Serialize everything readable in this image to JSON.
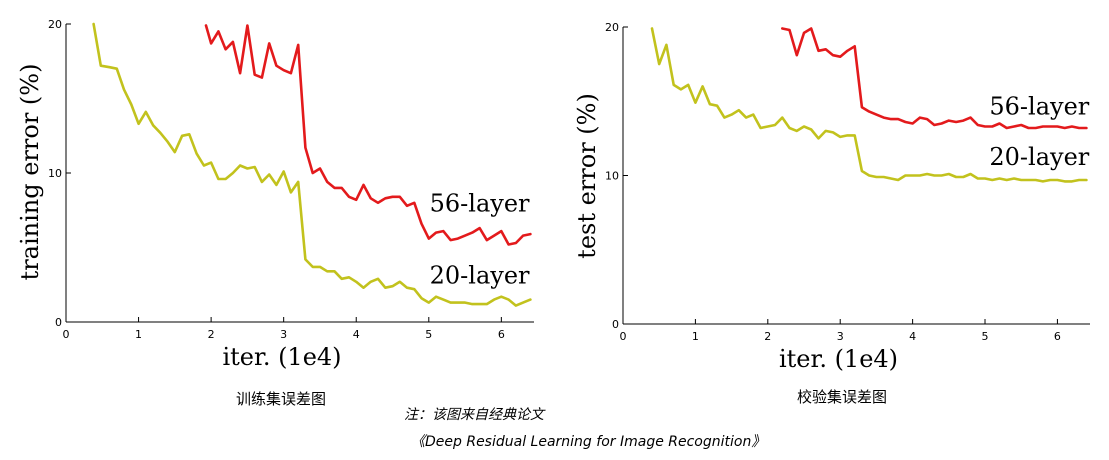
{
  "captions": {
    "left": "训练集误差图",
    "right": "校验集误差图",
    "note": "注：该图来自经典论文",
    "paper": "《Deep Residual Learning for Image Recognition》"
  },
  "chart_data": [
    {
      "type": "line",
      "title": "",
      "xlabel": "iter. (1e4)",
      "ylabel": "training error (%)",
      "xlim": [
        0,
        6.45
      ],
      "ylim": [
        0,
        20
      ],
      "x_ticks": [
        0,
        1,
        2,
        3,
        4,
        5,
        6
      ],
      "y_ticks": [
        0,
        10,
        20
      ],
      "grid": false,
      "series": [
        {
          "name": "56-layer",
          "color": "#e31a1c",
          "label_anchor": [
            5.7,
            7.4
          ],
          "x": [
            1.93,
            2.0,
            2.1,
            2.2,
            2.3,
            2.4,
            2.5,
            2.6,
            2.7,
            2.8,
            2.9,
            3.0,
            3.1,
            3.2,
            3.3,
            3.4,
            3.5,
            3.6,
            3.7,
            3.8,
            3.9,
            4.0,
            4.1,
            4.2,
            4.3,
            4.4,
            4.5,
            4.6,
            4.7,
            4.8,
            4.9,
            5.0,
            5.1,
            5.2,
            5.3,
            5.4,
            5.5,
            5.6,
            5.7,
            5.8,
            5.9,
            6.0,
            6.1,
            6.2,
            6.3,
            6.4
          ],
          "y": [
            19.9,
            18.7,
            19.5,
            18.3,
            18.8,
            16.7,
            19.9,
            16.6,
            16.4,
            18.7,
            17.2,
            16.9,
            16.7,
            18.6,
            11.7,
            10.0,
            10.3,
            9.4,
            9.0,
            9.0,
            8.4,
            8.2,
            9.2,
            8.3,
            8.0,
            8.3,
            8.4,
            8.4,
            7.8,
            8.0,
            6.6,
            5.6,
            6.0,
            6.1,
            5.5,
            5.6,
            5.8,
            6.0,
            6.3,
            5.5,
            5.8,
            6.1,
            5.2,
            5.3,
            5.8,
            5.9
          ]
        },
        {
          "name": "20-layer",
          "color": "#c2c21d",
          "label_anchor": [
            5.7,
            2.6
          ],
          "x": [
            0.38,
            0.48,
            0.6,
            0.7,
            0.8,
            0.9,
            1.0,
            1.1,
            1.2,
            1.3,
            1.4,
            1.5,
            1.6,
            1.7,
            1.8,
            1.9,
            2.0,
            2.1,
            2.2,
            2.3,
            2.4,
            2.5,
            2.6,
            2.7,
            2.8,
            2.9,
            3.0,
            3.1,
            3.2,
            3.3,
            3.4,
            3.5,
            3.6,
            3.7,
            3.8,
            3.9,
            4.0,
            4.1,
            4.2,
            4.3,
            4.4,
            4.5,
            4.6,
            4.7,
            4.8,
            4.9,
            5.0,
            5.1,
            5.2,
            5.3,
            5.4,
            5.5,
            5.6,
            5.7,
            5.8,
            5.9,
            6.0,
            6.1,
            6.2,
            6.3,
            6.4
          ],
          "y": [
            20.0,
            17.2,
            17.1,
            17.0,
            15.6,
            14.6,
            13.3,
            14.1,
            13.2,
            12.7,
            12.1,
            11.4,
            12.5,
            12.6,
            11.3,
            10.5,
            10.7,
            9.6,
            9.6,
            10.0,
            10.5,
            10.3,
            10.4,
            9.4,
            9.9,
            9.2,
            10.1,
            8.7,
            9.4,
            4.2,
            3.7,
            3.7,
            3.4,
            3.4,
            2.9,
            3.0,
            2.7,
            2.3,
            2.7,
            2.9,
            2.3,
            2.4,
            2.7,
            2.3,
            2.2,
            1.6,
            1.3,
            1.7,
            1.5,
            1.3,
            1.3,
            1.3,
            1.2,
            1.2,
            1.2,
            1.5,
            1.7,
            1.5,
            1.1,
            1.3,
            1.5
          ]
        }
      ]
    },
    {
      "type": "line",
      "title": "",
      "xlabel": "iter. (1e4)",
      "ylabel": "test error (%)",
      "xlim": [
        0,
        6.45
      ],
      "ylim": [
        0,
        20
      ],
      "x_ticks": [
        0,
        1,
        2,
        3,
        4,
        5,
        6
      ],
      "y_ticks": [
        0,
        10,
        20
      ],
      "grid": false,
      "series": [
        {
          "name": "56-layer",
          "color": "#e31a1c",
          "label_anchor": [
            5.75,
            14.1
          ],
          "x": [
            2.2,
            2.3,
            2.4,
            2.5,
            2.6,
            2.7,
            2.8,
            2.9,
            3.0,
            3.1,
            3.2,
            3.3,
            3.4,
            3.5,
            3.6,
            3.7,
            3.8,
            3.9,
            4.0,
            4.1,
            4.2,
            4.3,
            4.4,
            4.5,
            4.6,
            4.7,
            4.8,
            4.9,
            5.0,
            5.1,
            5.2,
            5.3,
            5.4,
            5.5,
            5.6,
            5.7,
            5.8,
            5.9,
            6.0,
            6.1,
            6.2,
            6.3,
            6.4
          ],
          "y": [
            19.9,
            19.8,
            18.1,
            19.6,
            19.9,
            18.4,
            18.5,
            18.1,
            18.0,
            18.4,
            18.7,
            14.6,
            14.3,
            14.1,
            13.9,
            13.8,
            13.8,
            13.6,
            13.5,
            13.9,
            13.8,
            13.4,
            13.5,
            13.7,
            13.6,
            13.7,
            13.9,
            13.4,
            13.3,
            13.3,
            13.5,
            13.2,
            13.3,
            13.4,
            13.2,
            13.2,
            13.3,
            13.3,
            13.3,
            13.2,
            13.3,
            13.2,
            13.2
          ]
        },
        {
          "name": "20-layer",
          "color": "#c2c21d",
          "label_anchor": [
            5.75,
            10.7
          ],
          "x": [
            0.4,
            0.5,
            0.6,
            0.7,
            0.8,
            0.9,
            1.0,
            1.1,
            1.2,
            1.3,
            1.4,
            1.5,
            1.6,
            1.7,
            1.8,
            1.9,
            2.0,
            2.1,
            2.2,
            2.3,
            2.4,
            2.5,
            2.6,
            2.7,
            2.8,
            2.9,
            3.0,
            3.1,
            3.2,
            3.3,
            3.4,
            3.5,
            3.6,
            3.7,
            3.8,
            3.9,
            4.0,
            4.1,
            4.2,
            4.3,
            4.4,
            4.5,
            4.6,
            4.7,
            4.8,
            4.9,
            5.0,
            5.1,
            5.2,
            5.3,
            5.4,
            5.5,
            5.6,
            5.7,
            5.8,
            5.9,
            6.0,
            6.1,
            6.2,
            6.3,
            6.4
          ],
          "y": [
            19.9,
            17.5,
            18.8,
            16.1,
            15.8,
            16.1,
            14.9,
            16.0,
            14.8,
            14.7,
            13.9,
            14.1,
            14.4,
            13.9,
            14.1,
            13.2,
            13.3,
            13.4,
            13.9,
            13.2,
            13.0,
            13.3,
            13.1,
            12.5,
            13.0,
            12.9,
            12.6,
            12.7,
            12.7,
            10.3,
            10.0,
            9.9,
            9.9,
            9.8,
            9.7,
            10.0,
            10.0,
            10.0,
            10.1,
            10.0,
            10.0,
            10.1,
            9.9,
            9.9,
            10.1,
            9.8,
            9.8,
            9.7,
            9.8,
            9.7,
            9.8,
            9.7,
            9.7,
            9.7,
            9.6,
            9.7,
            9.7,
            9.6,
            9.6,
            9.7,
            9.7
          ]
        }
      ]
    }
  ]
}
